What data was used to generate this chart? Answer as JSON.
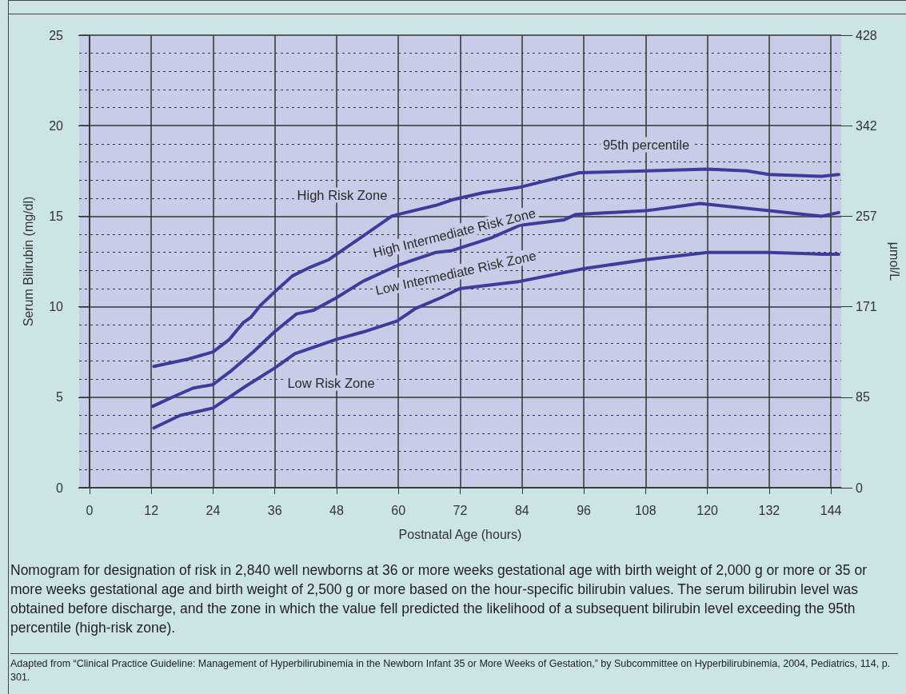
{
  "chart_data": {
    "type": "line",
    "xlabel": "Postnatal Age (hours)",
    "ylabel": "Serum Bilirubin (mg/dl)",
    "y2label": "μmol/L",
    "xlim": [
      -2,
      146
    ],
    "xticks": [
      0,
      12,
      24,
      36,
      48,
      60,
      72,
      84,
      96,
      108,
      120,
      132,
      144
    ],
    "ylim": [
      0,
      25
    ],
    "yticks": [
      0,
      5,
      10,
      15,
      20,
      25
    ],
    "y2lim": [
      0,
      427.5
    ],
    "y2ticks": [
      0,
      {
        "value": 85.5,
        "label": "85"
      },
      171,
      {
        "value": 256.5,
        "label": "257"
      },
      342,
      {
        "value": 427.5,
        "label": "428"
      }
    ],
    "grid": true,
    "marker": "none",
    "line_style": "solid",
    "series": [
      {
        "color": "#3d3b9c",
        "x": [
          12.5,
          19.1,
          24,
          27.2,
          29.8,
          31.3,
          33.3,
          35.9,
          39.4,
          43,
          46.5,
          48,
          53.1,
          58.7,
          60,
          67.3,
          70.4,
          76.5,
          83.6,
          90.7,
          95.2,
          108,
          120,
          127.7,
          132,
          142.2,
          145.5
        ],
        "values": [
          6.7,
          7.1,
          7.5,
          8.2,
          9.1,
          9.4,
          10.1,
          10.8,
          11.7,
          12.2,
          12.6,
          12.9,
          13.9,
          15,
          15.1,
          15.6,
          15.9,
          16.3,
          16.6,
          17.1,
          17.4,
          17.5,
          17.6,
          17.5,
          17.3,
          17.2,
          17.3
        ]
      },
      {
        "color": "#3d3b9c",
        "x": [
          12.3,
          16.1,
          20.1,
          24,
          27.7,
          31.8,
          35.9,
          40.2,
          43.5,
          48,
          53.1,
          60,
          67.3,
          70.4,
          78,
          83.6,
          92.2,
          94.5,
          108,
          118.6,
          132,
          142.2,
          145.5
        ],
        "values": [
          4.5,
          5,
          5.5,
          5.7,
          6.5,
          7.5,
          8.6,
          9.6,
          9.8,
          10.5,
          11.4,
          12.3,
          13,
          13.1,
          13.8,
          14.5,
          14.8,
          15.1,
          15.3,
          15.7,
          15.3,
          15,
          15.2
        ]
      },
      {
        "color": "#3d3b9c",
        "x": [
          12.5,
          17.6,
          24,
          30.3,
          35.9,
          39.9,
          48,
          53.1,
          59.7,
          63.3,
          68.3,
          71.9,
          83.6,
          96,
          108,
          120,
          132,
          142.2,
          145.5
        ],
        "values": [
          3.3,
          4,
          4.4,
          5.6,
          6.6,
          7.4,
          8.2,
          8.6,
          9.2,
          9.9,
          10.5,
          11,
          11.4,
          12.1,
          12.6,
          13,
          13,
          12.9,
          12.9
        ]
      }
    ],
    "annotations": [
      "High Risk Zone",
      "95th percentile",
      "High Intermediate Risk Zone",
      "Low Intermediate Risk Zone",
      "Low Risk Zone",
      "Nomogram for designation of risk in 2,840 well newborns at 36 or more weeks gestational age with birth weight of 2,000 g or more or 35 or more weeks gestational age and birth weight of 2,500 g or more based on the hour-specific bilirubin values. The serum bilirubin level was obtained before discharge, and the zone in which the value fell predicted the likelihood of a subsequent bilirubin level exceeding the 95th percentile (high-risk zone).",
      "Adapted from “Clinical Practice Guideline: Management of Hyperbilirubinemia in the Newborn Infant 35 or More Weeks of Gestation,” by Subcommittee on Hyperbilirubinemia, 2004, Pediatrics, 114, p. 301."
    ]
  }
}
